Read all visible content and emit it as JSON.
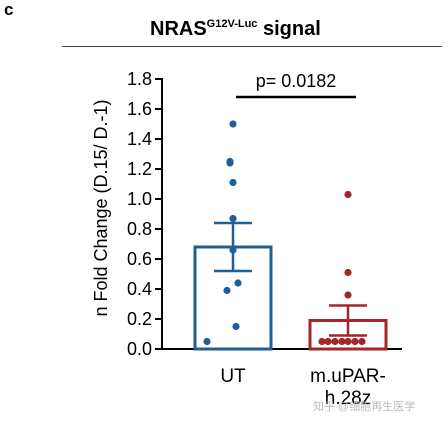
{
  "panel_letter": "c",
  "title": {
    "main": "NRAS",
    "superscript": "G12V-Luc",
    "suffix": " signal"
  },
  "watermark": "知乎 @细胞再生医学",
  "colors": {
    "ut": "#1f5f96",
    "car": "#a3262a",
    "axis": "#000000"
  },
  "chart_data": {
    "type": "bar",
    "categories": [
      "UT",
      "m.uPAR-h.28z"
    ],
    "category_labels": [
      [
        "UT"
      ],
      [
        "m.uPAR-",
        "h.28z"
      ]
    ],
    "values": [
      0.68,
      0.19
    ],
    "errors": [
      0.16,
      0.1
    ],
    "points": [
      [
        1.5,
        1.25,
        1.24,
        1.11,
        0.87,
        0.66,
        0.44,
        0.39,
        0.15,
        0.05
      ],
      [
        1.03,
        0.51,
        0.36,
        0.05,
        0.05,
        0.05,
        0.05,
        0.05,
        0.05,
        0.05
      ]
    ],
    "ylabel": "n Fold Change (D.15/ D.-1)",
    "ylim": [
      0.0,
      1.8
    ],
    "yticks": [
      "0.0",
      "0.2",
      "0.4",
      "0.6",
      "0.8",
      "1.0",
      "1.2",
      "1.4",
      "1.6",
      "1.8"
    ],
    "annotation": "p= 0.0182"
  }
}
